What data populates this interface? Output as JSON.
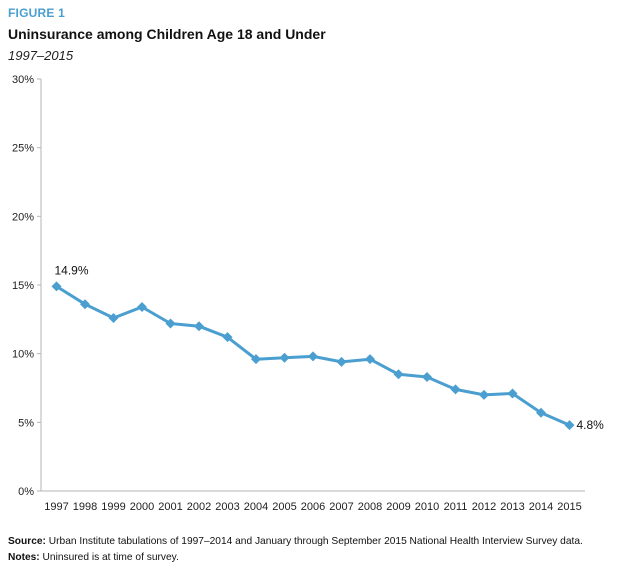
{
  "figure_label": "FIGURE 1",
  "chart_data": {
    "type": "line",
    "title": "Uninsurance among Children Age 18 and Under",
    "subtitle": "1997–2015",
    "xlabel": "",
    "ylabel": "",
    "categories": [
      "1997",
      "1998",
      "1999",
      "2000",
      "2001",
      "2002",
      "2003",
      "2004",
      "2005",
      "2006",
      "2007",
      "2008",
      "2009",
      "2010",
      "2011",
      "2012",
      "2013",
      "2014",
      "2015"
    ],
    "series": [
      {
        "name": "",
        "values": [
          14.9,
          13.6,
          12.6,
          13.4,
          12.2,
          12.0,
          11.2,
          9.6,
          9.7,
          9.8,
          9.4,
          9.6,
          8.5,
          8.3,
          7.4,
          7.0,
          7.1,
          5.7,
          4.8
        ]
      }
    ],
    "ylim": [
      0,
      30
    ],
    "yticks": [
      0,
      5,
      10,
      15,
      20,
      25,
      30
    ],
    "ytick_labels": [
      "0%",
      "5%",
      "10%",
      "15%",
      "20%",
      "25%",
      "30%"
    ],
    "data_labels": [
      {
        "index": 0,
        "text": "14.9%"
      },
      {
        "index": 18,
        "text": "4.8%"
      }
    ],
    "grid": false,
    "line_color": "#4a9fd0"
  },
  "footer": {
    "source_label": "Source:",
    "source_text": "Urban Institute tabulations of 1997–2014 and January through September 2015 National Health Interview Survey data.",
    "notes_label": "Notes:",
    "notes_text": "Uninsured is at time of survey."
  }
}
